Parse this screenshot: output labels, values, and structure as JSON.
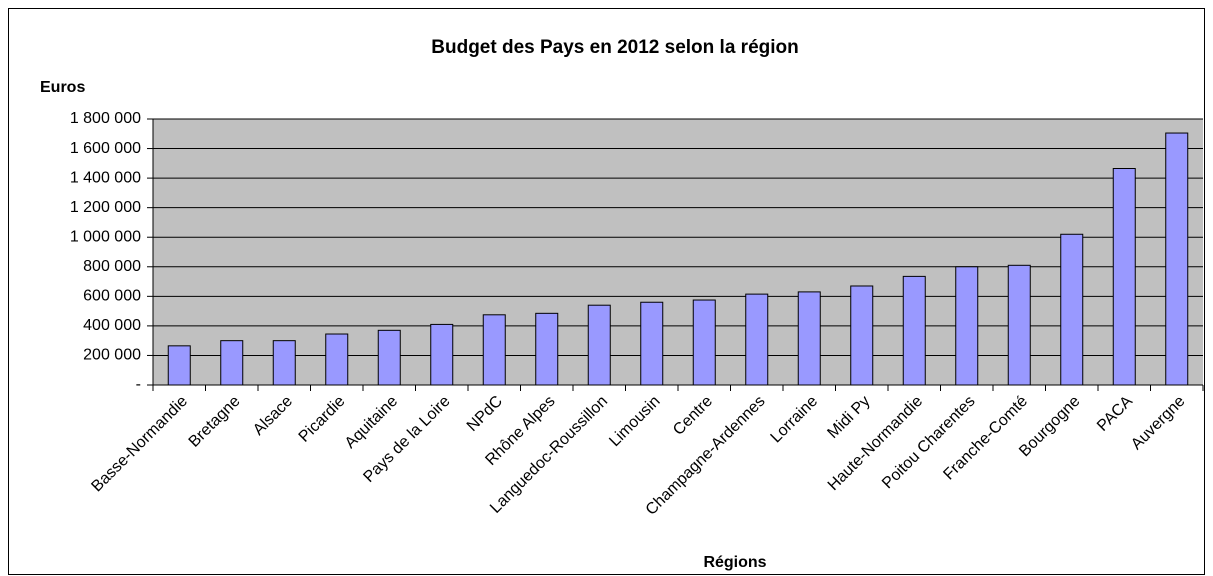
{
  "chart_data": {
    "type": "bar",
    "title": "Budget des Pays en 2012 selon la région",
    "y_label": "Euros",
    "x_label": "Régions",
    "categories": [
      "Basse-Normandie",
      "Bretagne",
      "Alsace",
      "Picardie",
      "Aquitaine",
      "Pays de la Loire",
      "NPdC",
      "Rhône Alpes",
      "Languedoc-Roussillon",
      "Limousin",
      "Centre",
      "Champagne-Ardennes",
      "Lorraine",
      "Midi Py",
      "Haute-Normandie",
      "Poitou Charentes",
      "Franche-Comté",
      "Bourgogne",
      "PACA",
      "Auvergne"
    ],
    "values": [
      265000,
      300000,
      300000,
      345000,
      370000,
      410000,
      475000,
      485000,
      540000,
      560000,
      575000,
      615000,
      630000,
      670000,
      735000,
      800000,
      810000,
      1020000,
      1465000,
      1705000
    ],
    "color": "#9999ff",
    "ylim": [
      0,
      1800000
    ],
    "yticks": [
      {
        "value": 0,
        "label": "-"
      },
      {
        "value": 200000,
        "label": "200 000"
      },
      {
        "value": 400000,
        "label": "400 000"
      },
      {
        "value": 600000,
        "label": "600 000"
      },
      {
        "value": 800000,
        "label": "800 000"
      },
      {
        "value": 1000000,
        "label": "1 000 000"
      },
      {
        "value": 1200000,
        "label": "1 200 000"
      },
      {
        "value": 1400000,
        "label": "1 400 000"
      },
      {
        "value": 1600000,
        "label": "1 600 000"
      },
      {
        "value": 1800000,
        "label": "1 800 000"
      }
    ],
    "grid": true
  }
}
